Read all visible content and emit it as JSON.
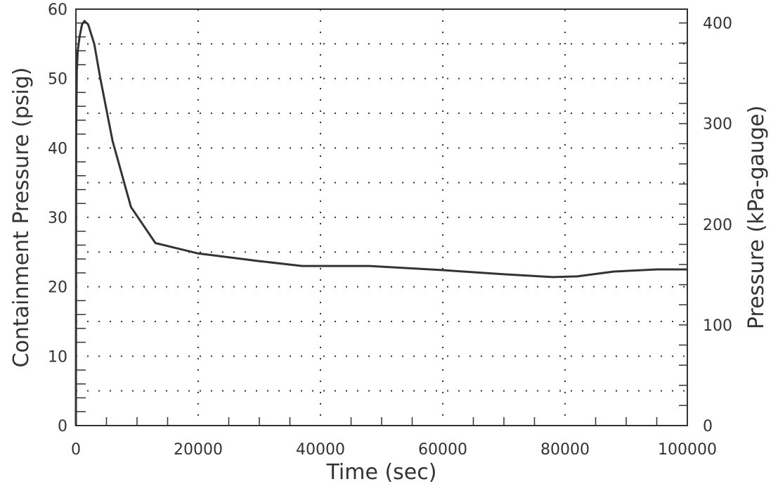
{
  "chart_data": {
    "type": "line",
    "xlabel": "Time (sec)",
    "ylabel": "Containment Pressure (psig)",
    "ylabel_right": "Pressure (kPa-gauge)",
    "xlim": [
      0,
      100000
    ],
    "ylim": [
      0,
      60
    ],
    "ylim_right_kpa": [
      0,
      413.7
    ],
    "grid": true,
    "x_ticks": [
      "0",
      "20000",
      "40000",
      "60000",
      "80000",
      "100000"
    ],
    "y_ticks": [
      "0",
      "10",
      "20",
      "30",
      "40",
      "50",
      "60"
    ],
    "y_ticks_right": [
      "0",
      "100",
      "200",
      "300",
      "400"
    ],
    "series": [
      {
        "color": "#333333",
        "x": [
          0,
          50,
          150,
          300,
          600,
          1000,
          1400,
          2000,
          3000,
          4000,
          6000,
          9000,
          13000,
          20000,
          30000,
          37000,
          48000,
          60000,
          70000,
          78000,
          82000,
          88000,
          95000,
          100000
        ],
        "y": [
          0,
          42,
          51,
          54,
          56,
          57.8,
          58.3,
          57.8,
          55,
          50,
          41,
          31.5,
          26.3,
          24.8,
          23.7,
          23,
          23,
          22.4,
          21.8,
          21.4,
          21.5,
          22.2,
          22.5,
          22.5
        ]
      }
    ]
  }
}
